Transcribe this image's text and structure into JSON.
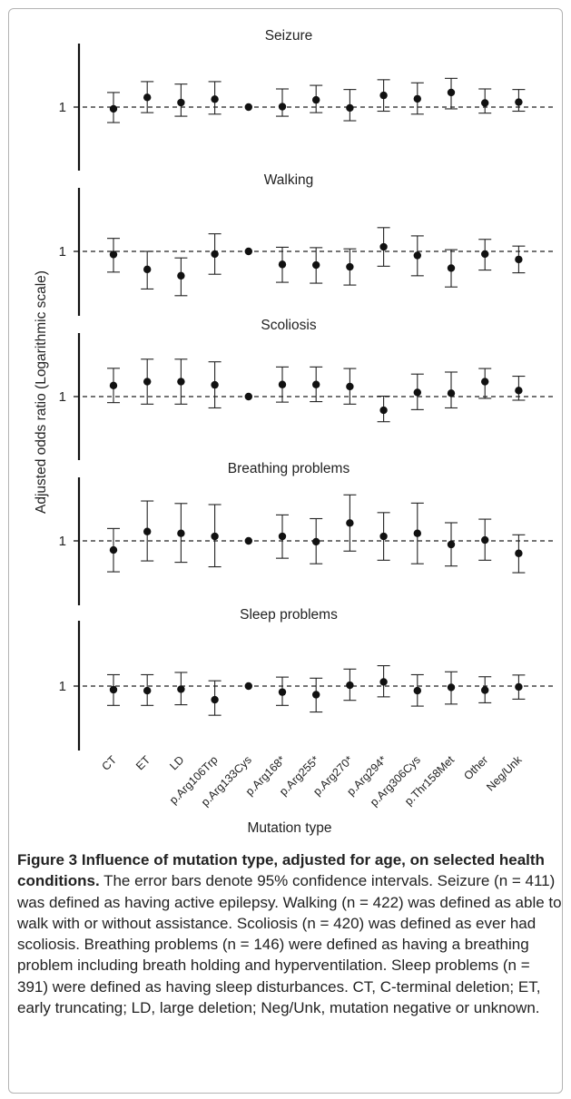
{
  "figure": {
    "ylabel": "Adjusted odds ratio (Logarithmic scale)",
    "xlabel": "Mutation type",
    "y_ref_label": "1"
  },
  "chart_data": [
    {
      "type": "scatter",
      "title": "Seizure",
      "yscale": "log",
      "reference_line": 1,
      "categories": [
        "CT",
        "ET",
        "LD",
        "p.Arg106Trp",
        "p.Arg133Cys",
        "p.Arg168*",
        "p.Arg255*",
        "p.Arg270*",
        "p.Arg294*",
        "p.Arg306Cys",
        "p.Thr158Met",
        "Other",
        "Neg/Unk"
      ],
      "values": [
        0.96,
        1.25,
        1.11,
        1.2,
        1.0,
        1.01,
        1.18,
        0.98,
        1.31,
        1.21,
        1.4,
        1.1,
        1.12
      ],
      "ci_low": [
        0.7,
        0.88,
        0.81,
        0.85,
        1.0,
        0.81,
        0.88,
        0.73,
        0.91,
        0.85,
        0.96,
        0.87,
        0.91
      ],
      "ci_high": [
        1.4,
        1.8,
        1.7,
        1.8,
        1.0,
        1.52,
        1.65,
        1.5,
        1.88,
        1.75,
        1.94,
        1.52,
        1.5
      ]
    },
    {
      "type": "scatter",
      "title": "Walking",
      "yscale": "log",
      "reference_line": 1,
      "categories": [
        "CT",
        "ET",
        "LD",
        "p.Arg106Trp",
        "p.Arg133Cys",
        "p.Arg168*",
        "p.Arg255*",
        "p.Arg270*",
        "p.Arg294*",
        "p.Arg306Cys",
        "p.Thr158Met",
        "Other",
        "Neg/Unk"
      ],
      "values": [
        0.93,
        0.66,
        0.57,
        0.94,
        1.0,
        0.74,
        0.73,
        0.7,
        1.11,
        0.91,
        0.68,
        0.94,
        0.83
      ],
      "ci_low": [
        0.62,
        0.42,
        0.36,
        0.59,
        1.0,
        0.49,
        0.48,
        0.46,
        0.71,
        0.57,
        0.44,
        0.65,
        0.61
      ],
      "ci_high": [
        1.35,
        1.0,
        0.86,
        1.5,
        1.0,
        1.1,
        1.09,
        1.06,
        1.73,
        1.43,
        1.04,
        1.32,
        1.13
      ]
    },
    {
      "type": "scatter",
      "title": "Scoliosis",
      "yscale": "log",
      "reference_line": 1,
      "categories": [
        "CT",
        "ET",
        "LD",
        "p.Arg106Trp",
        "p.Arg133Cys",
        "p.Arg168*",
        "p.Arg255*",
        "p.Arg270*",
        "p.Arg294*",
        "p.Arg306Cys",
        "p.Thr158Met",
        "Other",
        "Neg/Unk"
      ],
      "values": [
        1.29,
        1.41,
        1.41,
        1.31,
        1.0,
        1.32,
        1.32,
        1.26,
        0.73,
        1.1,
        1.08,
        1.41,
        1.15
      ],
      "ci_low": [
        0.87,
        0.84,
        0.84,
        0.77,
        1.0,
        0.88,
        0.89,
        0.84,
        0.56,
        0.74,
        0.77,
        0.96,
        0.92
      ],
      "ci_high": [
        1.92,
        2.37,
        2.37,
        2.23,
        1.0,
        1.98,
        1.98,
        1.91,
        1.01,
        1.68,
        1.76,
        1.91,
        1.6
      ]
    },
    {
      "type": "scatter",
      "title": "Breathing problems",
      "yscale": "log",
      "reference_line": 1,
      "categories": [
        "CT",
        "ET",
        "LD",
        "p.Arg106Trp",
        "p.Arg133Cys",
        "p.Arg168*",
        "p.Arg255*",
        "p.Arg270*",
        "p.Arg294*",
        "p.Arg306Cys",
        "p.Thr158Met",
        "Other",
        "Neg/Unk"
      ],
      "values": [
        0.81,
        1.24,
        1.19,
        1.11,
        1.0,
        1.11,
        0.98,
        1.51,
        1.11,
        1.19,
        0.92,
        1.02,
        0.75
      ],
      "ci_low": [
        0.49,
        0.63,
        0.61,
        0.55,
        1.0,
        0.67,
        0.59,
        0.79,
        0.64,
        0.59,
        0.56,
        0.64,
        0.48
      ],
      "ci_high": [
        1.33,
        2.51,
        2.37,
        2.31,
        1.0,
        1.82,
        1.67,
        2.89,
        1.92,
        2.39,
        1.52,
        1.65,
        1.15
      ]
    },
    {
      "type": "scatter",
      "title": "Sleep problems",
      "yscale": "log",
      "reference_line": 1,
      "categories": [
        "CT",
        "ET",
        "LD",
        "p.Arg106Trp",
        "p.Arg133Cys",
        "p.Arg168*",
        "p.Arg255*",
        "p.Arg270*",
        "p.Arg294*",
        "p.Arg306Cys",
        "p.Thr158Met",
        "Other",
        "Neg/Unk"
      ],
      "values": [
        0.92,
        0.9,
        0.93,
        0.73,
        1.0,
        0.87,
        0.82,
        1.02,
        1.1,
        0.9,
        0.97,
        0.91,
        0.98
      ],
      "ci_low": [
        0.64,
        0.64,
        0.65,
        0.51,
        1.0,
        0.64,
        0.55,
        0.72,
        0.78,
        0.63,
        0.66,
        0.68,
        0.74
      ],
      "ci_high": [
        1.3,
        1.3,
        1.37,
        1.13,
        1.0,
        1.23,
        1.2,
        1.48,
        1.6,
        1.3,
        1.39,
        1.24,
        1.29
      ]
    }
  ],
  "caption": {
    "title": "Figure 3 Influence of mutation type, adjusted for age, on selected health conditions.",
    "body": " The error bars denote 95% confidence intervals. Seizure (n = 411) was defined as having active epilepsy. Walking (n = 422) was defined as able to walk with or without assistance. Scoliosis (n = 420) was defined as ever had scoliosis. Breathing problems (n = 146) were defined as having a breathing problem including breath holding and hyperventilation. Sleep problems (n = 391) were defined as having sleep disturbances. CT, C-terminal deletion; ET, early truncating; LD, large deletion; Neg/Unk, mutation negative or unknown."
  }
}
